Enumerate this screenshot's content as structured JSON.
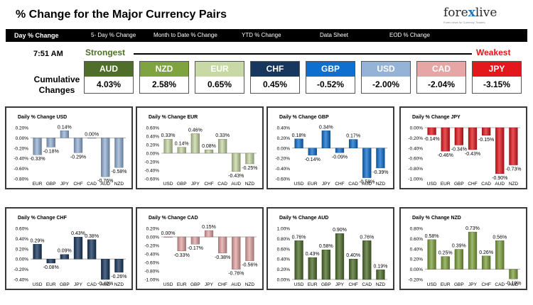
{
  "header": {
    "title": "% Change for the Major Currency Pairs",
    "logo_main": "fore",
    "logo_x": "x",
    "logo_rest": "live",
    "logo_tagline": "Forex news for Currency Traders"
  },
  "tabs": [
    {
      "label": "Day % Change",
      "active": true
    },
    {
      "label": "5- Day % Change",
      "active": false
    },
    {
      "label": "Month to Date % Change",
      "active": false
    },
    {
      "label": "YTD % Change",
      "active": false
    },
    {
      "label": "Data Sheet",
      "active": false
    },
    {
      "label": "EOD % Change",
      "active": false
    }
  ],
  "time": "7:51 AM",
  "strongest_label": "Strongest",
  "weakest_label": "Weakest",
  "cumulative_label_line1": "Cumulative",
  "cumulative_label_line2": "Changes",
  "currencies": [
    {
      "code": "AUD",
      "value": "4.03%",
      "color": "#4e6e2a"
    },
    {
      "code": "NZD",
      "value": "2.58%",
      "color": "#7fa33e"
    },
    {
      "code": "EUR",
      "value": "0.65%",
      "color": "#c9d9a6"
    },
    {
      "code": "CHF",
      "value": "0.45%",
      "color": "#17375e"
    },
    {
      "code": "GBP",
      "value": "-0.52%",
      "color": "#0f6fcf"
    },
    {
      "code": "USD",
      "value": "-2.00%",
      "color": "#95b3d7"
    },
    {
      "code": "CAD",
      "value": "-2.04%",
      "color": "#e6a6a6"
    },
    {
      "code": "JPY",
      "value": "-3.15%",
      "color": "#e4171c"
    }
  ],
  "chart_data": [
    {
      "type": "bar",
      "title": "Daily % Change USD",
      "categories": [
        "EUR",
        "GBP",
        "JPY",
        "CHF",
        "CAD",
        "AUD",
        "NZD"
      ],
      "values": [
        -0.33,
        -0.18,
        0.14,
        -0.29,
        0.0,
        -0.76,
        -0.58
      ],
      "labels": [
        "-0.33%",
        "-0.18%",
        "0.14%",
        "-0.29%",
        "0.00%",
        "-0.76%",
        "-0.58%"
      ],
      "ylim": [
        -0.8,
        0.2
      ],
      "ticks": [
        "0.20%",
        "0.00%",
        "-0.20%",
        "-0.40%",
        "-0.60%",
        "-0.80%"
      ],
      "color": "#95b3d7"
    },
    {
      "type": "bar",
      "title": "Daily % Change EUR",
      "categories": [
        "USD",
        "GBP",
        "JPY",
        "CHF",
        "CAD",
        "AUD",
        "NZD"
      ],
      "values": [
        0.33,
        0.14,
        0.46,
        0.08,
        0.33,
        -0.43,
        -0.25
      ],
      "labels": [
        "0.33%",
        "0.14%",
        "0.46%",
        "0.08%",
        "0.33%",
        "-0.43%",
        "-0.25%"
      ],
      "ylim": [
        -0.6,
        0.6
      ],
      "ticks": [
        "0.60%",
        "0.40%",
        "0.20%",
        "0.00%",
        "-0.20%",
        "-0.40%",
        "-0.60%"
      ],
      "color": "#c9d9a6"
    },
    {
      "type": "bar",
      "title": "Daily % Change GBP",
      "categories": [
        "USD",
        "EUR",
        "JPY",
        "CHF",
        "CAD",
        "AUD",
        "NZD"
      ],
      "values": [
        0.18,
        -0.14,
        0.34,
        -0.09,
        0.17,
        -0.58,
        -0.39
      ],
      "labels": [
        "0.18%",
        "-0.14%",
        "0.34%",
        "-0.09%",
        "0.17%",
        "-0.58%",
        "-0.39%"
      ],
      "ylim": [
        -0.6,
        0.4
      ],
      "ticks": [
        "0.40%",
        "0.20%",
        "0.00%",
        "-0.20%",
        "-0.40%",
        "-0.60%"
      ],
      "color": "#0f6fcf"
    },
    {
      "type": "bar",
      "title": "Daily % Change JPY",
      "categories": [
        "USD",
        "EUR",
        "GBP",
        "CHF",
        "CAD",
        "AUD",
        "NZD"
      ],
      "values": [
        -0.14,
        -0.46,
        -0.34,
        -0.43,
        -0.15,
        -0.9,
        -0.73
      ],
      "labels": [
        "-0.14%",
        "-0.46%",
        "-0.34%",
        "-0.43%",
        "-0.15%",
        "-0.90%",
        "-0.73%"
      ],
      "ylim": [
        -1.0,
        0.0
      ],
      "ticks": [
        "0.00%",
        "-0.20%",
        "-0.40%",
        "-0.60%",
        "-0.80%",
        "-1.00%"
      ],
      "color": "#e4171c"
    },
    {
      "type": "bar",
      "title": "Daily % Change CHF",
      "categories": [
        "USD",
        "EUR",
        "GBP",
        "JPY",
        "CAD",
        "AUD",
        "NZD"
      ],
      "values": [
        0.29,
        -0.08,
        0.09,
        0.43,
        0.38,
        -0.4,
        -0.26
      ],
      "labels": [
        "0.29%",
        "-0.08%",
        "0.09%",
        "0.43%",
        "0.38%",
        "-0.40%",
        "-0.26%"
      ],
      "ylim": [
        -0.4,
        0.6
      ],
      "ticks": [
        "0.60%",
        "0.40%",
        "0.20%",
        "0.00%",
        "-0.20%",
        "-0.40%"
      ],
      "color": "#17375e"
    },
    {
      "type": "bar",
      "title": "Daily % Change CAD",
      "categories": [
        "USD",
        "EUR",
        "GBP",
        "JPY",
        "CHF",
        "AUD",
        "NZD"
      ],
      "values": [
        0.0,
        -0.33,
        -0.17,
        0.15,
        -0.38,
        -0.76,
        -0.56
      ],
      "labels": [
        "0.00%",
        "-0.33%",
        "-0.17%",
        "0.15%",
        "-0.38%",
        "-0.76%",
        "-0.56%"
      ],
      "ylim": [
        -1.0,
        0.2
      ],
      "ticks": [
        "0.20%",
        "0.00%",
        "-0.20%",
        "-0.40%",
        "-0.60%",
        "-0.80%",
        "-1.00%"
      ],
      "color": "#e6a6a6"
    },
    {
      "type": "bar",
      "title": "Daily % Change AUD",
      "categories": [
        "USD",
        "EUR",
        "GBP",
        "JPY",
        "CHF",
        "CAD",
        "NZD"
      ],
      "values": [
        0.76,
        0.43,
        0.58,
        0.9,
        0.4,
        0.76,
        0.19
      ],
      "labels": [
        "0.76%",
        "0.43%",
        "0.58%",
        "0.90%",
        "0.40%",
        "0.76%",
        "0.19%"
      ],
      "ylim": [
        0.0,
        1.0
      ],
      "ticks": [
        "1.00%",
        "0.80%",
        "0.60%",
        "0.40%",
        "0.20%",
        "0.00%"
      ],
      "color": "#4e6e2a"
    },
    {
      "type": "bar",
      "title": "Daily % Change NZD",
      "categories": [
        "USD",
        "EUR",
        "GBP",
        "JPY",
        "CHF",
        "CAD",
        "AUD"
      ],
      "values": [
        0.58,
        0.25,
        0.39,
        0.73,
        0.26,
        0.56,
        -0.19
      ],
      "labels": [
        "0.58%",
        "0.25%",
        "0.39%",
        "0.73%",
        "0.26%",
        "0.56%",
        "-0.19%"
      ],
      "ylim": [
        -0.2,
        0.8
      ],
      "ticks": [
        "0.80%",
        "0.60%",
        "0.40%",
        "0.20%",
        "0.00%",
        "-0.20%"
      ],
      "color": "#7fa33e"
    }
  ]
}
